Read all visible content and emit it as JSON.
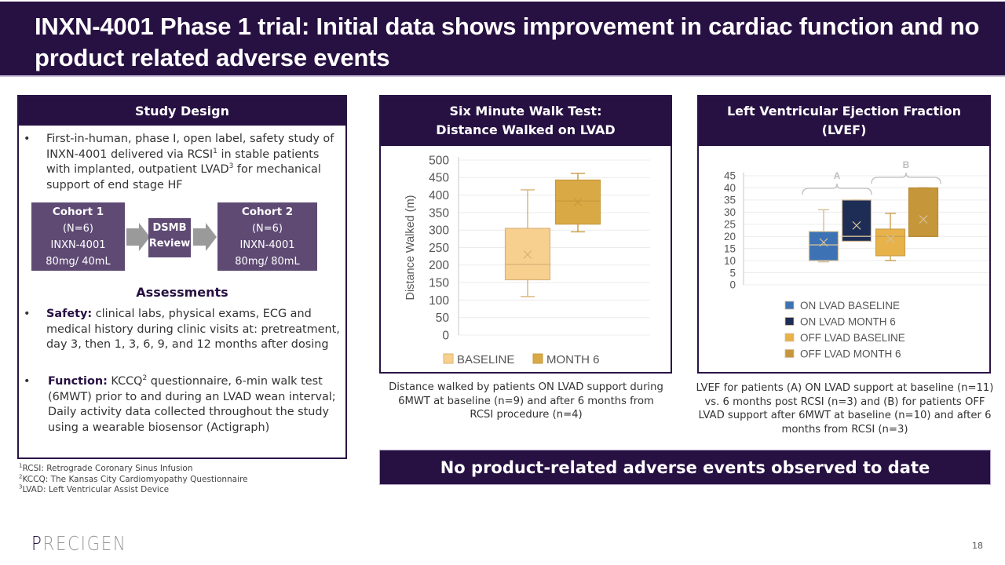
{
  "title": "INXN-4001 Phase 1 trial: Initial data shows improvement in cardiac function and no product related adverse events",
  "study_design": {
    "header": "Study Design",
    "intro_bullet": {
      "pre": "First-in-human, phase I, open label, safety study of INXN-4001 delivered via RCSI",
      "sup1": "1",
      "mid": " in stable patients with implanted, outpatient LVAD",
      "sup2": "3",
      "post": " for mechanical support of end stage HF"
    },
    "cohorts": [
      {
        "title": "Cohort 1",
        "n": "(N=6)",
        "drug": "INXN-4001",
        "dose": "80mg/ 40mL"
      },
      {
        "title": "Cohort 2",
        "n": "(N=6)",
        "drug": "INXN-4001",
        "dose": "80mg/ 80mL"
      }
    ],
    "dsmb": {
      "line1": "DSMB",
      "line2": "Review"
    },
    "assessments_title": "Assessments",
    "assessments": [
      {
        "label": "Safety:",
        "text": " clinical labs, physical exams, ECG and medical history during clinic visits at: pretreatment, day 3, then 1, 3, 6, 9, and 12 months after dosing"
      },
      {
        "label": "Function:",
        "sup_pre": " KCCQ",
        "sup": "2",
        "text": " questionnaire, 6-min walk test (6MWT) prior to and during an LVAD wean interval; Daily activity data collected throughout the study using a wearable biosensor (Actigraph)"
      }
    ],
    "bullet_char": "•"
  },
  "footnotes": [
    {
      "num": "1",
      "text": "RCSI: Retrograde Coronary Sinus Infusion"
    },
    {
      "num": "2",
      "text": "KCCQ: The Kansas City Cardiomyopathy Questionnaire"
    },
    {
      "num": "3",
      "text": "LVAD: Left Ventricular Assist Device"
    }
  ],
  "walk_panel": {
    "header_line1": "Six Minute Walk Test:",
    "header_line2": "Distance Walked on LVAD",
    "caption": "Distance walked by patients ON LVAD support during 6MWT at baseline (n=9) and after 6 months from RCSI procedure (n=4)"
  },
  "lvef_panel": {
    "header_line1": "Left Ventricular Ejection Fraction",
    "header_line2": "(LVEF)",
    "caption": "LVEF for patients (A) ON LVAD support at baseline (n=11) vs. 6 months post RCSI (n=3) and (B) for patients OFF LVAD support after 6MWT at baseline (n=10) and after 6 months from RCSI (n=3)"
  },
  "banner": "No product-related adverse events observed to date",
  "footer": {
    "logo_first": "P",
    "logo_rest": "RECIGEN",
    "page_number": "18"
  },
  "chart_data": [
    {
      "type": "box",
      "title": "Six Minute Walk Test: Distance Walked on LVAD",
      "xlabel": "",
      "ylabel": "Distance Walked (m)",
      "ylim": [
        0,
        500
      ],
      "yticks": [
        0,
        50,
        100,
        150,
        200,
        250,
        300,
        350,
        400,
        450,
        500
      ],
      "grid": true,
      "legend": "bottom",
      "series": [
        {
          "name": "BASELINE",
          "color": "#f7d08f",
          "stroke": "#d9b27a",
          "min": 110,
          "q1": 158,
          "median": 202,
          "q3": 305,
          "max": 415,
          "mean": 230
        },
        {
          "name": "MONTH 6",
          "color": "#d9a945",
          "stroke": "#c79a3c",
          "min": 295,
          "q1": 317,
          "median": 383,
          "q3": 443,
          "max": 462,
          "mean": 380
        }
      ]
    },
    {
      "type": "box",
      "title": "Left Ventricular Ejection Fraction (LVEF)",
      "xlabel": "",
      "ylabel": "",
      "ylim": [
        0,
        45
      ],
      "yticks": [
        0,
        5,
        10,
        15,
        20,
        25,
        30,
        35,
        40,
        45
      ],
      "grid": true,
      "legend": "bottom",
      "groups": [
        {
          "label": "A",
          "members": [
            "ON LVAD BASELINE",
            "ON LVAD MONTH 6"
          ]
        },
        {
          "label": "B",
          "members": [
            "OFF LVAD BASELINE",
            "OFF LVAD MONTH 6"
          ]
        }
      ],
      "series": [
        {
          "name": "ON LVAD BASELINE",
          "color": "#3d72b4",
          "stroke": "#d4bf9a",
          "min": 9.5,
          "q1": 10,
          "median": 16.5,
          "q3": 22,
          "max": 31,
          "mean": 17.5
        },
        {
          "name": "ON LVAD MONTH 6",
          "color": "#1d2d55",
          "stroke": "#d4bf9a",
          "min": 18,
          "q1": 18,
          "median": 20,
          "q3": 35,
          "max": 35,
          "mean": 24.5
        },
        {
          "name": "OFF LVAD BASELINE",
          "color": "#e8b24a",
          "stroke": "#c8a050",
          "min": 10,
          "q1": 12,
          "median": 20,
          "q3": 23,
          "max": 29.5,
          "mean": 19
        },
        {
          "name": "OFF LVAD MONTH 6",
          "color": "#c6973a",
          "stroke": "#b88a34",
          "min": 20,
          "q1": 20,
          "median": 20,
          "q3": 40,
          "max": 40,
          "mean": 27
        }
      ]
    }
  ]
}
